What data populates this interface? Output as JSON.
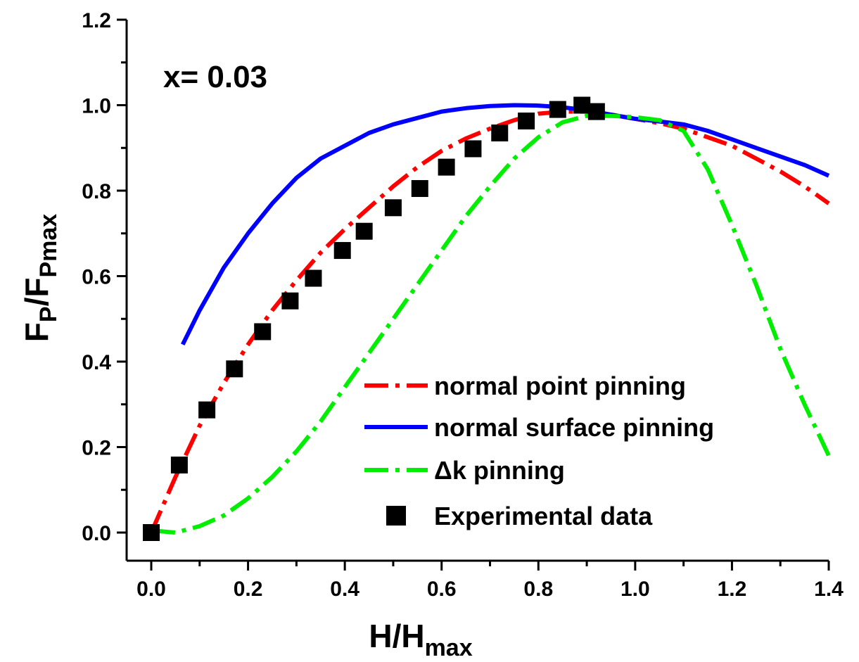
{
  "chart_data": {
    "type": "line",
    "annotation": "x= 0.03",
    "xlabel": {
      "main": "H/H",
      "sub": "max"
    },
    "ylabel": {
      "f1": "F",
      "p1": "P",
      "slash": "/F",
      "p2": "Pmax"
    },
    "xlim": [
      0,
      1.4
    ],
    "ylim": [
      0,
      1.2
    ],
    "xticks": [
      {
        "v": 0.0,
        "label": "0.0"
      },
      {
        "v": 0.2,
        "label": "0.2"
      },
      {
        "v": 0.4,
        "label": "0.4"
      },
      {
        "v": 0.6,
        "label": "0.6"
      },
      {
        "v": 0.8,
        "label": "0.8"
      },
      {
        "v": 1.0,
        "label": "1.0"
      },
      {
        "v": 1.2,
        "label": "1.2"
      },
      {
        "v": 1.4,
        "label": "1.4"
      }
    ],
    "yticks": [
      {
        "v": 0.0,
        "label": "0.0"
      },
      {
        "v": 0.2,
        "label": "0.2"
      },
      {
        "v": 0.4,
        "label": "0.4"
      },
      {
        "v": 0.6,
        "label": "0.6"
      },
      {
        "v": 0.8,
        "label": "0.8"
      },
      {
        "v": 1.0,
        "label": "1.0"
      },
      {
        "v": 1.2,
        "label": "1.2"
      }
    ],
    "grid": false,
    "legend_position": "lower-right",
    "series": [
      {
        "name": "normal point pinning",
        "style": "dash-dot",
        "color": "#ff0000",
        "marker": "none",
        "x": [
          0.0,
          0.05,
          0.1,
          0.15,
          0.2,
          0.25,
          0.3,
          0.35,
          0.4,
          0.45,
          0.5,
          0.55,
          0.6,
          0.65,
          0.7,
          0.75,
          0.8,
          0.85,
          0.9,
          0.95,
          1.0,
          1.05,
          1.1,
          1.15,
          1.2,
          1.25,
          1.3,
          1.35,
          1.4
        ],
        "y": [
          0.0,
          0.13,
          0.25,
          0.35,
          0.44,
          0.52,
          0.59,
          0.655,
          0.71,
          0.76,
          0.81,
          0.855,
          0.893,
          0.922,
          0.945,
          0.965,
          0.98,
          0.985,
          0.985,
          0.978,
          0.968,
          0.958,
          0.945,
          0.925,
          0.905,
          0.875,
          0.845,
          0.81,
          0.77
        ]
      },
      {
        "name": "normal surface pinning",
        "style": "solid",
        "color": "#0000ff",
        "marker": "none",
        "x": [
          0.065,
          0.1,
          0.15,
          0.2,
          0.25,
          0.3,
          0.35,
          0.4,
          0.45,
          0.5,
          0.55,
          0.6,
          0.65,
          0.7,
          0.75,
          0.8,
          0.85,
          0.9,
          0.95,
          1.0,
          1.05,
          1.1,
          1.15,
          1.2,
          1.25,
          1.3,
          1.35,
          1.4
        ],
        "y": [
          0.44,
          0.52,
          0.62,
          0.7,
          0.77,
          0.83,
          0.875,
          0.905,
          0.935,
          0.955,
          0.97,
          0.985,
          0.993,
          0.998,
          1.0,
          0.999,
          0.995,
          0.988,
          0.978,
          0.968,
          0.962,
          0.955,
          0.94,
          0.92,
          0.9,
          0.88,
          0.86,
          0.835
        ]
      },
      {
        "name": "Δk pinning",
        "style": "dash-dot",
        "color": "#00ee00",
        "marker": "none",
        "x": [
          0.0,
          0.05,
          0.1,
          0.15,
          0.2,
          0.25,
          0.3,
          0.35,
          0.4,
          0.45,
          0.5,
          0.55,
          0.6,
          0.65,
          0.7,
          0.75,
          0.8,
          0.85,
          0.9,
          0.95,
          1.0,
          1.05,
          1.1,
          1.15,
          1.2,
          1.25,
          1.3,
          1.35,
          1.4
        ],
        "y": [
          0.005,
          0.0,
          0.015,
          0.04,
          0.08,
          0.13,
          0.19,
          0.26,
          0.34,
          0.42,
          0.5,
          0.58,
          0.66,
          0.74,
          0.81,
          0.875,
          0.925,
          0.96,
          0.975,
          0.975,
          0.972,
          0.965,
          0.94,
          0.85,
          0.72,
          0.58,
          0.43,
          0.3,
          0.18
        ]
      },
      {
        "name": "Experimental data",
        "style": "none",
        "color": "#000000",
        "marker": "square",
        "x": [
          0.0,
          0.058,
          0.115,
          0.172,
          0.23,
          0.287,
          0.335,
          0.395,
          0.44,
          0.5,
          0.555,
          0.61,
          0.665,
          0.72,
          0.775,
          0.84,
          0.89,
          0.92
        ],
        "y": [
          0.0,
          0.158,
          0.287,
          0.383,
          0.47,
          0.542,
          0.595,
          0.66,
          0.705,
          0.76,
          0.805,
          0.855,
          0.898,
          0.935,
          0.963,
          0.99,
          1.0,
          0.985
        ]
      }
    ]
  }
}
